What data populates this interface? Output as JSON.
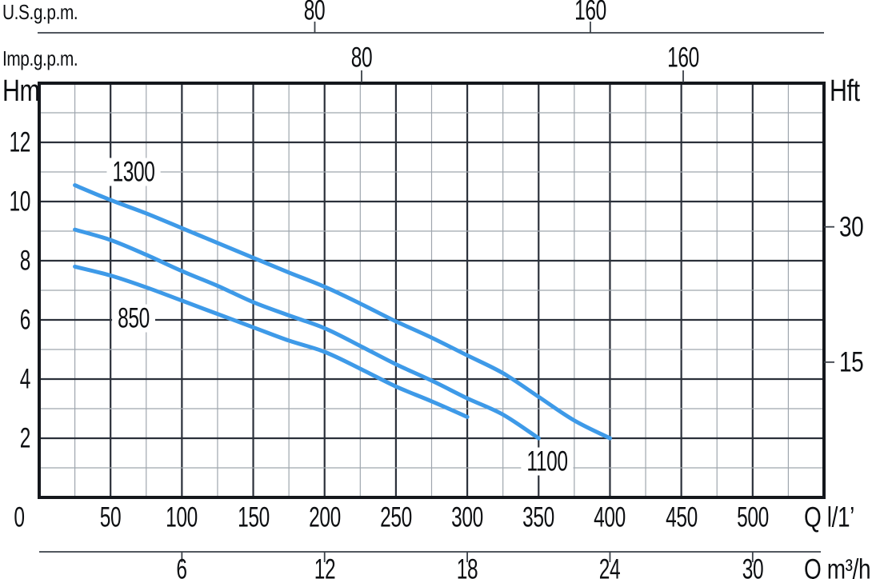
{
  "chart_data": {
    "type": "line",
    "description": "Pump head vs flow performance curves for three pump models",
    "legend_position": "inline-curve-labels",
    "grid": "on",
    "colors": {
      "curve": "#3e9ae8",
      "grid_major": "#2b303a",
      "grid_minor": "#9fa6ae",
      "frame": "#14171c",
      "axis_line": "#3a4048",
      "text": "#0d0f12"
    },
    "x_axis_primary": {
      "label": "Q l/1’",
      "unit": "l/min",
      "ticks": [
        0,
        50,
        100,
        150,
        200,
        250,
        300,
        350,
        400,
        450,
        500
      ],
      "range": [
        0,
        550
      ],
      "minor_step": 25,
      "major_step": 50
    },
    "x_axis_m3h": {
      "label": "Q m³/h",
      "unit": "m3/h",
      "ticks": [
        6,
        12,
        18,
        24,
        30
      ]
    },
    "x_axis_usgpm": {
      "label": "U.S.g.p.m.",
      "unit": "US gpm",
      "ticks": [
        80,
        160
      ]
    },
    "x_axis_impgpm": {
      "label": "Imp.g.p.m.",
      "unit": "Imp gpm",
      "ticks": [
        80,
        160
      ]
    },
    "y_axis_left": {
      "label": "Hm",
      "unit": "m",
      "ticks": [
        2,
        4,
        6,
        8,
        10,
        12
      ],
      "range": [
        0,
        14
      ],
      "minor_step": 1,
      "major_step": 2
    },
    "y_axis_right": {
      "label": "Hft",
      "unit": "ft",
      "ticks": [
        15,
        30
      ]
    },
    "series": [
      {
        "name": "1300",
        "points": [
          [
            25,
            10.55
          ],
          [
            50,
            10.05
          ],
          [
            75,
            9.6
          ],
          [
            100,
            9.1
          ],
          [
            125,
            8.6
          ],
          [
            150,
            8.1
          ],
          [
            175,
            7.6
          ],
          [
            200,
            7.12
          ],
          [
            225,
            6.55
          ],
          [
            250,
            5.95
          ],
          [
            275,
            5.4
          ],
          [
            300,
            4.8
          ],
          [
            325,
            4.2
          ],
          [
            350,
            3.4
          ],
          [
            375,
            2.6
          ],
          [
            400,
            2.0
          ]
        ],
        "label_at": {
          "q": 66,
          "h": 11.0
        }
      },
      {
        "name": "1100",
        "points": [
          [
            25,
            9.05
          ],
          [
            50,
            8.7
          ],
          [
            75,
            8.2
          ],
          [
            100,
            7.65
          ],
          [
            125,
            7.15
          ],
          [
            150,
            6.6
          ],
          [
            175,
            6.15
          ],
          [
            200,
            5.72
          ],
          [
            225,
            5.12
          ],
          [
            250,
            4.5
          ],
          [
            275,
            3.95
          ],
          [
            300,
            3.35
          ],
          [
            325,
            2.8
          ],
          [
            350,
            2.0
          ]
        ],
        "label_at": {
          "q": 356,
          "h": 1.22
        }
      },
      {
        "name": "850",
        "points": [
          [
            25,
            7.8
          ],
          [
            50,
            7.5
          ],
          [
            75,
            7.1
          ],
          [
            100,
            6.65
          ],
          [
            125,
            6.2
          ],
          [
            150,
            5.75
          ],
          [
            175,
            5.3
          ],
          [
            200,
            4.92
          ],
          [
            225,
            4.35
          ],
          [
            250,
            3.75
          ],
          [
            275,
            3.25
          ],
          [
            300,
            2.72
          ]
        ],
        "label_at": {
          "q": 66,
          "h": 6.05
        }
      }
    ]
  }
}
